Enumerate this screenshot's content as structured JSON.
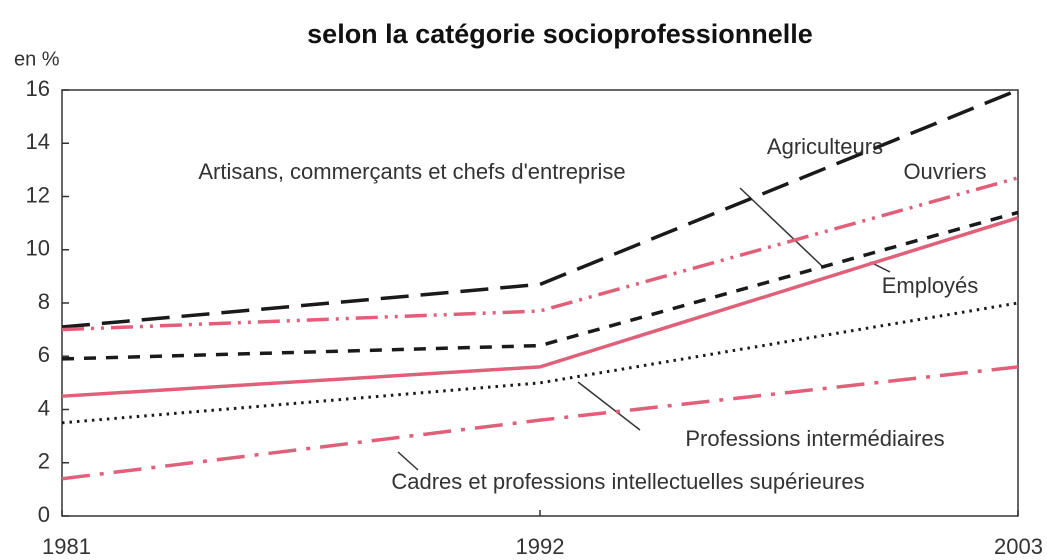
{
  "chart_data": {
    "type": "line",
    "title": "selon la catégorie socioprofessionnelle",
    "y_label": "en %",
    "x": [
      1981,
      1992,
      2003
    ],
    "xlim": [
      1981,
      2003
    ],
    "xticks": [
      1981,
      1992,
      2003
    ],
    "ylim": [
      0,
      16
    ],
    "yticks": [
      0,
      2,
      4,
      6,
      8,
      10,
      12,
      14,
      16
    ],
    "series": [
      {
        "name": "Agriculteurs",
        "color": "#1a1a1a",
        "dash": "long-dash",
        "values": [
          7.1,
          8.7,
          16.0
        ]
      },
      {
        "name": "Ouvriers",
        "color": "#e0607a",
        "dash": "dash-dot-dot",
        "values": [
          7.0,
          7.7,
          12.7
        ]
      },
      {
        "name": "Artisans, commerçants et chefs d'entreprise",
        "color": "#1a1a1a",
        "dash": "short-dash",
        "values": [
          5.9,
          6.4,
          11.4
        ]
      },
      {
        "name": "Employés",
        "color": "#e0607a",
        "dash": "solid",
        "values": [
          4.5,
          5.6,
          11.2
        ]
      },
      {
        "name": "Professions intermédiaires",
        "color": "#1a1a1a",
        "dash": "dotted",
        "values": [
          3.5,
          5.0,
          8.0
        ]
      },
      {
        "name": "Cadres et professions intellectuelles supérieures",
        "color": "#e0607a",
        "dash": "dash-dot",
        "values": [
          1.4,
          3.6,
          5.6
        ]
      }
    ]
  }
}
